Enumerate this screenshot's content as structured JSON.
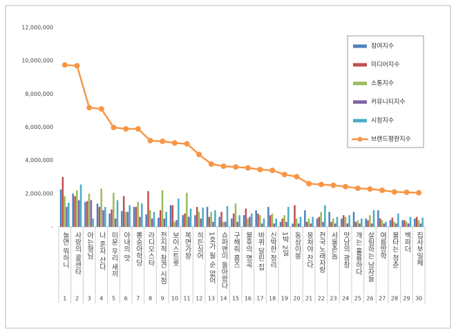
{
  "chart_data": {
    "type": "bar",
    "categories": [
      "놀면 뭐하니",
      "사랑의 콜센타",
      "아는형님",
      "나 혼자 산다",
      "미운 우리 새끼",
      "아내의 맛",
      "뽕숭아학당",
      "라디오스타",
      "전지적 참견 시점",
      "보이스트롯",
      "복면가왕",
      "히든싱어",
      "1호가 될 순 없어",
      "슈퍼맨이 돌아왔다",
      "구해줘 홈즈",
      "불후의 명곡",
      "바퀴 달린 집",
      "신박한 정리",
      "1박 2일",
      "동상이몽",
      "뭉쳐야 찬다",
      "전국노래자랑",
      "서울촌놈",
      "맛남의 광장",
      "개는 훌륭하다",
      "살림하는 남자들",
      "여름방학",
      "불타는 청춘",
      "백파더",
      "집사부일체"
    ],
    "category_numbers": [
      1,
      2,
      3,
      4,
      5,
      6,
      7,
      8,
      9,
      10,
      11,
      12,
      13,
      14,
      15,
      16,
      17,
      18,
      19,
      20,
      21,
      22,
      23,
      24,
      25,
      26,
      27,
      28,
      29,
      30
    ],
    "series": [
      {
        "name": "참여지수",
        "color": "#4f81bd",
        "values": [
          2250000,
          2000000,
          1500000,
          1400000,
          800000,
          950000,
          1200000,
          750000,
          550000,
          1300000,
          700000,
          700000,
          1200000,
          600000,
          500000,
          700000,
          1000000,
          1200000,
          300000,
          200000,
          1000000,
          500000,
          900000,
          500000,
          900000,
          500000,
          1000000,
          400000,
          400000,
          500000
        ]
      },
      {
        "name": "미디어지수",
        "color": "#c0504d",
        "values": [
          3000000,
          1850000,
          1550000,
          1200000,
          1050000,
          1850000,
          1200000,
          2150000,
          1000000,
          1300000,
          800000,
          1200000,
          600000,
          900000,
          800000,
          1100000,
          800000,
          700000,
          500000,
          1300000,
          300000,
          600000,
          300000,
          700000,
          300000,
          400000,
          500000,
          550000,
          400000,
          600000
        ]
      },
      {
        "name": "소통지수",
        "color": "#9bbb59",
        "values": [
          1850000,
          2200000,
          2000000,
          2300000,
          2050000,
          900000,
          1500000,
          1000000,
          2200000,
          300000,
          2050000,
          900000,
          900000,
          300000,
          1400000,
          500000,
          700000,
          800000,
          700000,
          500000,
          500000,
          900000,
          500000,
          600000,
          400000,
          700000,
          400000,
          300000,
          300000,
          400000
        ]
      },
      {
        "name": "커뮤니티지수",
        "color": "#8064a2",
        "values": [
          1200000,
          1600000,
          1600000,
          1000000,
          500000,
          900000,
          600000,
          500000,
          500000,
          400000,
          600000,
          500000,
          300000,
          300000,
          300000,
          600000,
          200000,
          200000,
          300000,
          200000,
          200000,
          300000,
          200000,
          200000,
          200000,
          200000,
          200000,
          200000,
          200000,
          200000
        ]
      },
      {
        "name": "시청지수",
        "color": "#4bacc6",
        "values": [
          1450000,
          2550000,
          500000,
          1200000,
          1600000,
          1300000,
          1400000,
          900000,
          900000,
          1700000,
          1100000,
          1150000,
          1000000,
          1250000,
          700000,
          800000,
          500000,
          500000,
          1200000,
          600000,
          600000,
          1300000,
          600000,
          700000,
          500000,
          1000000,
          300000,
          800000,
          600000,
          550000
        ]
      },
      {
        "name": "브랜드평판지수",
        "color": "#f79646",
        "type": "line",
        "values": [
          9750000,
          9700000,
          7180000,
          7100000,
          5980000,
          5900000,
          5900000,
          5190000,
          5150000,
          5050000,
          5000000,
          4360000,
          3780000,
          3650000,
          3600000,
          3550000,
          3450000,
          3400000,
          3150000,
          3020000,
          2600000,
          2550000,
          2500000,
          2420000,
          2320000,
          2280000,
          2200000,
          2100000,
          2080000,
          2050000
        ]
      }
    ],
    "ylim": [
      0,
      12000000
    ],
    "yticks": [
      {
        "value": 0,
        "label": "-"
      },
      {
        "value": 2000000,
        "label": "2,000,000"
      },
      {
        "value": 4000000,
        "label": "4,000,000"
      },
      {
        "value": 6000000,
        "label": "6,000,000"
      },
      {
        "value": 8000000,
        "label": "8,000,000"
      },
      {
        "value": 10000000,
        "label": "10,000,000"
      },
      {
        "value": 12000000,
        "label": "12,000,000"
      }
    ],
    "grid": false,
    "legend": "upper right"
  }
}
